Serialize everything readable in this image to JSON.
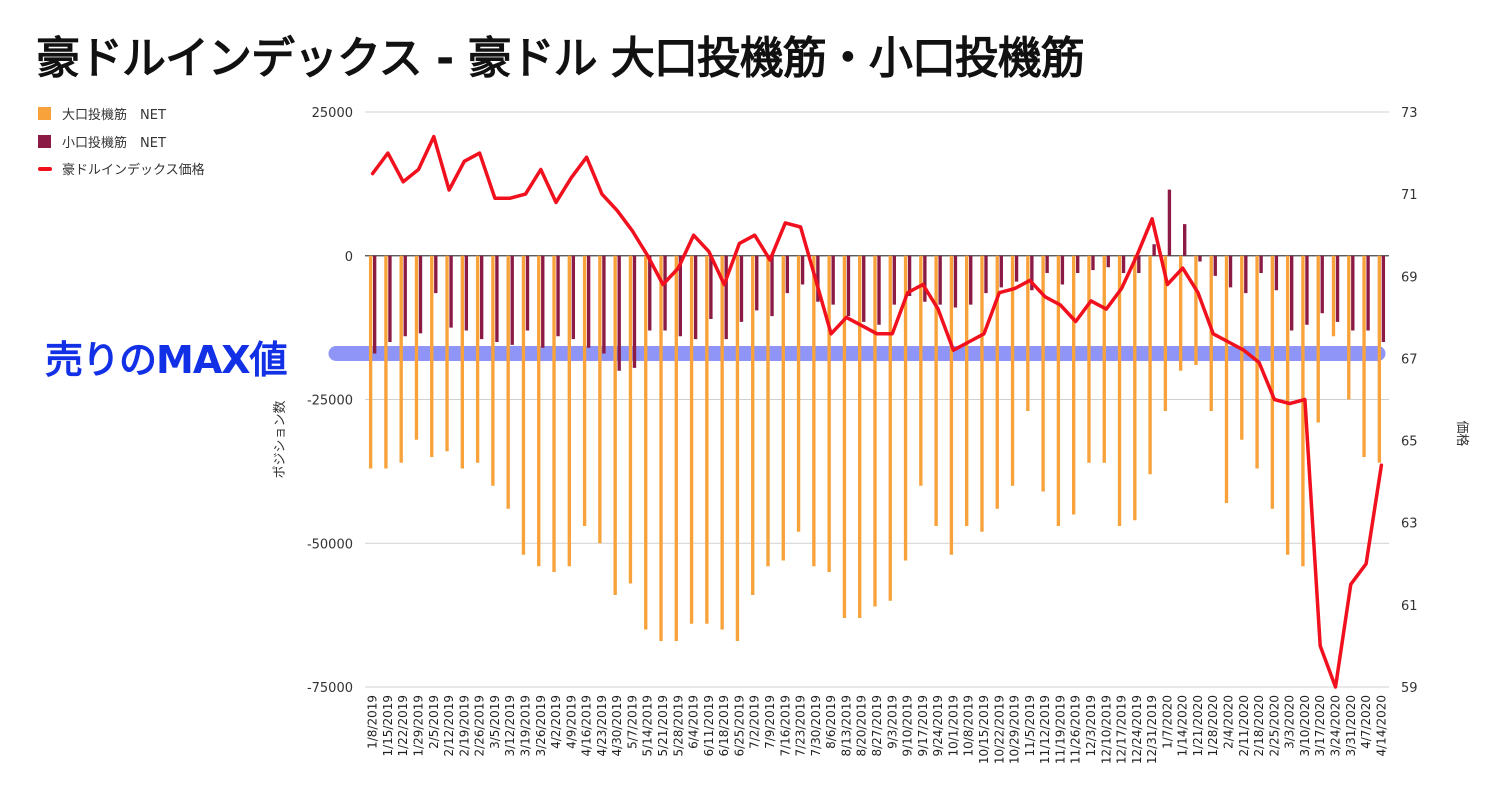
{
  "title": "豪ドルインデックス - 豪ドル 大口投機筋・小口投機筋",
  "annotation": {
    "text": "売りのMAX値",
    "color": "#1230e6",
    "highlight_color": "#7b83f5"
  },
  "chart_data": {
    "type": "bar",
    "title": "豪ドルインデックス - 豪ドル 大口投機筋・小口投機筋",
    "ylabel": "ポジション数",
    "y2label": "価格",
    "ylim": [
      -75000,
      25000
    ],
    "y_ticks": [
      25000,
      0,
      -25000,
      -50000,
      -75000
    ],
    "y_tick_labels": [
      "25000",
      "0",
      "-25000",
      "-50000",
      "-75000"
    ],
    "y2lim": [
      59,
      73
    ],
    "y2_ticks": [
      73,
      71,
      69,
      67,
      65,
      63,
      61,
      59
    ],
    "y2_tick_labels": [
      "73",
      "71",
      "69",
      "67",
      "65",
      "63",
      "61",
      "59"
    ],
    "legend_position": "top-left",
    "grid": true,
    "highlight_value": -17000,
    "categories": [
      "1/8/2019",
      "1/15/2019",
      "1/22/2019",
      "1/29/2019",
      "2/5/2019",
      "2/12/2019",
      "2/19/2019",
      "2/26/2019",
      "3/5/2019",
      "3/12/2019",
      "3/19/2019",
      "3/26/2019",
      "4/2/2019",
      "4/9/2019",
      "4/16/2019",
      "4/23/2019",
      "4/30/2019",
      "5/7/2019",
      "5/14/2019",
      "5/21/2019",
      "5/28/2019",
      "6/4/2019",
      "6/11/2019",
      "6/18/2019",
      "6/25/2019",
      "7/2/2019",
      "7/9/2019",
      "7/16/2019",
      "7/23/2019",
      "7/30/2019",
      "8/6/2019",
      "8/13/2019",
      "8/20/2019",
      "8/27/2019",
      "9/3/2019",
      "9/10/2019",
      "9/17/2019",
      "9/24/2019",
      "10/1/2019",
      "10/8/2019",
      "10/15/2019",
      "10/22/2019",
      "10/29/2019",
      "11/5/2019",
      "11/12/2019",
      "11/19/2019",
      "11/26/2019",
      "12/3/2019",
      "12/10/2019",
      "12/17/2019",
      "12/24/2019",
      "12/31/2019",
      "1/7/2020",
      "1/14/2020",
      "1/21/2020",
      "1/28/2020",
      "2/4/2020",
      "2/11/2020",
      "2/18/2020",
      "2/25/2020",
      "3/3/2020",
      "3/10/2020",
      "3/17/2020",
      "3/24/2020",
      "3/31/2020",
      "4/7/2020",
      "4/14/2020"
    ],
    "series": [
      {
        "name": "大口投機筋　NET",
        "type": "bar",
        "axis": "left",
        "color": "#f7a23b",
        "values": [
          -37000,
          -37000,
          -36000,
          -32000,
          -35000,
          -34000,
          -37000,
          -36000,
          -40000,
          -44000,
          -52000,
          -54000,
          -55000,
          -54000,
          -47000,
          -50000,
          -59000,
          -57000,
          -65000,
          -67000,
          -67000,
          -64000,
          -64000,
          -65000,
          -67000,
          -59000,
          -54000,
          -53000,
          -48000,
          -54000,
          -55000,
          -63000,
          -63000,
          -61000,
          -60000,
          -53000,
          -40000,
          -47000,
          -52000,
          -47000,
          -48000,
          -44000,
          -40000,
          -27000,
          -41000,
          -47000,
          -45000,
          -36000,
          -36000,
          -47000,
          -46000,
          -38000,
          -27000,
          -20000,
          -19000,
          -27000,
          -43000,
          -32000,
          -37000,
          -44000,
          -52000,
          -54000,
          -29000,
          -14000,
          -25000,
          -35000,
          -36000
        ]
      },
      {
        "name": "小口投機筋　NET",
        "type": "bar",
        "axis": "left",
        "color": "#8b1a45",
        "values": [
          -17000,
          -15000,
          -14000,
          -13500,
          -6500,
          -12500,
          -13000,
          -14500,
          -15000,
          -15500,
          -13000,
          -16000,
          -14000,
          -14500,
          -16000,
          -17000,
          -20000,
          -19500,
          -13000,
          -13000,
          -14000,
          -14500,
          -11000,
          -14500,
          -11500,
          -9500,
          -10500,
          -6500,
          -5000,
          -8000,
          -8500,
          -10500,
          -11500,
          -12000,
          -8500,
          -7000,
          -8000,
          -8500,
          -9000,
          -8500,
          -6500,
          -5500,
          -4500,
          -6000,
          -3000,
          -5000,
          -3000,
          -2500,
          -2000,
          -3000,
          -3000,
          2000,
          11500,
          5500,
          -1000,
          -3500,
          -5500,
          -6500,
          -3000,
          -6000,
          -13000,
          -12000,
          -10000,
          -11500,
          -13000,
          -13000,
          -15000
        ]
      },
      {
        "name": "豪ドルインデックス価格",
        "type": "line",
        "axis": "right",
        "color": "#f0101e",
        "values": [
          71.5,
          72.0,
          71.3,
          71.6,
          72.4,
          71.1,
          71.8,
          72.0,
          70.9,
          70.9,
          71.0,
          71.6,
          70.8,
          71.4,
          71.9,
          71.0,
          70.6,
          70.1,
          69.5,
          68.8,
          69.2,
          70.0,
          69.6,
          68.8,
          69.8,
          70.0,
          69.4,
          70.3,
          70.2,
          68.9,
          67.6,
          68.0,
          67.8,
          67.6,
          67.6,
          68.6,
          68.8,
          68.2,
          67.2,
          67.4,
          67.6,
          68.6,
          68.7,
          68.9,
          68.5,
          68.3,
          67.9,
          68.4,
          68.2,
          68.7,
          69.5,
          70.4,
          68.8,
          69.2,
          68.6,
          67.6,
          67.4,
          67.2,
          66.9,
          66.0,
          65.9,
          66.0,
          60.0,
          59.0,
          61.5,
          62.0,
          64.4
        ]
      }
    ]
  }
}
